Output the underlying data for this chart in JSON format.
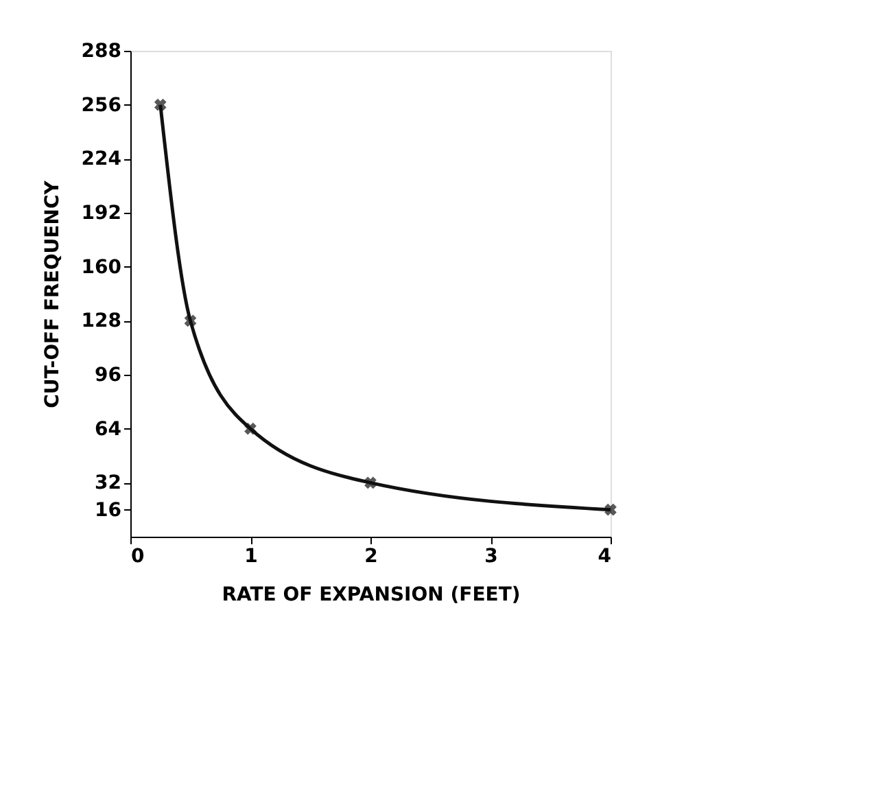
{
  "chart_data": {
    "type": "line",
    "xlabel": "RATE OF EXPANSION (FEET)",
    "ylabel": "CUT-OFF FREQUENCY",
    "x": [
      0.25,
      0.5,
      1,
      2,
      4
    ],
    "series": [
      {
        "color": "#111111",
        "values": [
          256,
          128,
          64,
          32,
          16
        ]
      }
    ],
    "xlim": [
      0,
      4
    ],
    "xticks": [
      0,
      1,
      2,
      3,
      4
    ],
    "ylim": [
      0,
      288
    ],
    "yticks": [
      16,
      32,
      64,
      96,
      128,
      160,
      192,
      224,
      256,
      288
    ],
    "marker": "cross",
    "line_style": "solid",
    "grid": false
  }
}
